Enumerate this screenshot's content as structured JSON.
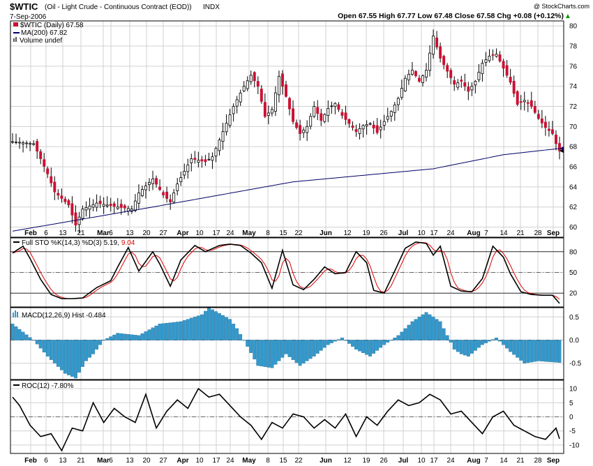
{
  "header": {
    "symbol": "$WTIC",
    "description": "(Oil - Light Crude - Continuous Contract (EOD))",
    "exchange": "INDX",
    "date": "7-Sep-2006",
    "copyright": "@ StockCharts.com",
    "ohlc_text": "Open 67.55  High 67.77  Low 67.48  Close 67.58  Chg +0.08 (+0.12%)",
    "ohlc_arrow": "▲"
  },
  "legend": {
    "price": "$WTIC (Daily) 67.58",
    "ma": "MA(200) 67.82",
    "volume": "Volume undef",
    "sto_prefix": "Full STO %K(14,3) %D(3) 5.19,",
    "sto_d_value": "9.04",
    "macd": "MACD(12,26,9) Hist -0.484",
    "roc": "ROC(12) -7.80%"
  },
  "colors": {
    "up_candle": "#ffffff",
    "down_candle": "#cc1133",
    "ma_line": "#000066",
    "k_line": "#000000",
    "d_line": "#dd0000",
    "hist": "#3399cc",
    "roc_line": "#000000"
  },
  "x_labels": [
    "Feb",
    "6",
    "13",
    "21",
    "Mar",
    "6",
    "13",
    "20",
    "27",
    "Apr",
    "10",
    "17",
    "24",
    "May",
    "8",
    "15",
    "22",
    "Jun",
    "12",
    "19",
    "26",
    "Jul",
    "10",
    "17",
    "24",
    "Aug",
    "7",
    "14",
    "21",
    "28",
    "Sep"
  ],
  "chart_data": [
    {
      "type": "candlestick",
      "name": "price",
      "ylim": [
        59,
        80.5
      ],
      "y_ticks": [
        "60",
        "62",
        "64",
        "66",
        "68",
        "70",
        "72",
        "74",
        "76",
        "78",
        "80"
      ],
      "close_anchors": [
        [
          0,
          68.5
        ],
        [
          6,
          68.3
        ],
        [
          10,
          65.3
        ],
        [
          12,
          63.5
        ],
        [
          16,
          62.2
        ],
        [
          18,
          60.2
        ],
        [
          20,
          61.8
        ],
        [
          24,
          62.4
        ],
        [
          30,
          62.0
        ],
        [
          34,
          61.8
        ],
        [
          36,
          63.4
        ],
        [
          40,
          64.8
        ],
        [
          43,
          63.2
        ],
        [
          45,
          62.5
        ],
        [
          47,
          64.3
        ],
        [
          51,
          66.8
        ],
        [
          55,
          66.5
        ],
        [
          57,
          67.0
        ],
        [
          60,
          69.5
        ],
        [
          63,
          72.0
        ],
        [
          66,
          74.0
        ],
        [
          68,
          75.1
        ],
        [
          70,
          74.0
        ],
        [
          72,
          71.0
        ],
        [
          74,
          71.7
        ],
        [
          76,
          75.0
        ],
        [
          78,
          73.0
        ],
        [
          80,
          70.5
        ],
        [
          82,
          69.3
        ],
        [
          84,
          70.0
        ],
        [
          86,
          72.0
        ],
        [
          88,
          70.6
        ],
        [
          90,
          71.8
        ],
        [
          92,
          72.3
        ],
        [
          94,
          71.1
        ],
        [
          96,
          70.3
        ],
        [
          98,
          69.5
        ],
        [
          100,
          70.1
        ],
        [
          102,
          70.3
        ],
        [
          104,
          69.4
        ],
        [
          106,
          70.5
        ],
        [
          108,
          71.5
        ],
        [
          110,
          72.8
        ],
        [
          112,
          74.8
        ],
        [
          114,
          75.6
        ],
        [
          116,
          74.5
        ],
        [
          118,
          75.6
        ],
        [
          120,
          79.0
        ],
        [
          122,
          76.8
        ],
        [
          124,
          75.5
        ],
        [
          126,
          74.2
        ],
        [
          128,
          74.5
        ],
        [
          130,
          73.5
        ],
        [
          132,
          74.5
        ],
        [
          134,
          76.3
        ],
        [
          136,
          77.0
        ],
        [
          138,
          77.2
        ],
        [
          140,
          75.8
        ],
        [
          142,
          74.4
        ],
        [
          144,
          72.2
        ],
        [
          146,
          72.6
        ],
        [
          148,
          72.0
        ],
        [
          150,
          70.8
        ],
        [
          152,
          69.9
        ],
        [
          154,
          69.3
        ],
        [
          155,
          68.3
        ],
        [
          156,
          67.58
        ]
      ],
      "last_close": 67.58
    },
    {
      "type": "line",
      "name": "MA(200)",
      "values_by_index": [
        [
          0,
          59.6
        ],
        [
          40,
          62.0
        ],
        [
          80,
          64.5
        ],
        [
          120,
          65.8
        ],
        [
          140,
          67.2
        ],
        [
          156,
          67.82
        ]
      ],
      "last_value": 67.82
    },
    {
      "type": "line",
      "name": "Full STO %K(14,3) %D(3)",
      "ylim": [
        0,
        100
      ],
      "y_ticks": [
        "20",
        "50",
        "80"
      ],
      "reference_lines": [
        80,
        50,
        20
      ],
      "k_anchors": [
        [
          0,
          78
        ],
        [
          3,
          88
        ],
        [
          5,
          70
        ],
        [
          8,
          40
        ],
        [
          11,
          18
        ],
        [
          14,
          12
        ],
        [
          17,
          12
        ],
        [
          20,
          13
        ],
        [
          24,
          28
        ],
        [
          28,
          38
        ],
        [
          30,
          58
        ],
        [
          33,
          86
        ],
        [
          36,
          52
        ],
        [
          40,
          80
        ],
        [
          42,
          62
        ],
        [
          45,
          30
        ],
        [
          48,
          68
        ],
        [
          52,
          89
        ],
        [
          55,
          80
        ],
        [
          59,
          89
        ],
        [
          62,
          91
        ],
        [
          65,
          89
        ],
        [
          68,
          78
        ],
        [
          71,
          64
        ],
        [
          74,
          27
        ],
        [
          77,
          82
        ],
        [
          80,
          32
        ],
        [
          83,
          25
        ],
        [
          86,
          40
        ],
        [
          89,
          58
        ],
        [
          92,
          48
        ],
        [
          95,
          50
        ],
        [
          98,
          80
        ],
        [
          101,
          64
        ],
        [
          103,
          24
        ],
        [
          106,
          20
        ],
        [
          109,
          52
        ],
        [
          112,
          85
        ],
        [
          115,
          94
        ],
        [
          118,
          92
        ],
        [
          120,
          75
        ],
        [
          122,
          88
        ],
        [
          125,
          30
        ],
        [
          128,
          23
        ],
        [
          131,
          22
        ],
        [
          134,
          41
        ],
        [
          137,
          88
        ],
        [
          140,
          72
        ],
        [
          142,
          48
        ],
        [
          145,
          22
        ],
        [
          148,
          18
        ],
        [
          151,
          17
        ],
        [
          154,
          17
        ],
        [
          156,
          5.19
        ]
      ],
      "k_last": 5.19,
      "d_last": 9.04
    },
    {
      "type": "bar",
      "name": "MACD(12,26,9) Hist",
      "ylim": [
        -0.85,
        0.7
      ],
      "y_ticks": [
        "0.5",
        "0.0",
        "-0.5"
      ],
      "anchors": [
        [
          0,
          0.35
        ],
        [
          6,
          0.0
        ],
        [
          10,
          -0.35
        ],
        [
          15,
          -0.72
        ],
        [
          18,
          -0.82
        ],
        [
          21,
          -0.45
        ],
        [
          23,
          -0.3
        ],
        [
          26,
          0.0
        ],
        [
          30,
          0.15
        ],
        [
          36,
          0.1
        ],
        [
          42,
          0.35
        ],
        [
          48,
          0.4
        ],
        [
          54,
          0.55
        ],
        [
          56,
          0.7
        ],
        [
          62,
          0.45
        ],
        [
          64,
          0.25
        ],
        [
          66,
          0.0
        ],
        [
          70,
          -0.55
        ],
        [
          74,
          -0.6
        ],
        [
          78,
          -0.3
        ],
        [
          82,
          -0.55
        ],
        [
          86,
          -0.35
        ],
        [
          90,
          -0.1
        ],
        [
          94,
          0.05
        ],
        [
          98,
          -0.2
        ],
        [
          102,
          -0.35
        ],
        [
          106,
          -0.1
        ],
        [
          110,
          0.1
        ],
        [
          114,
          0.4
        ],
        [
          118,
          0.6
        ],
        [
          122,
          0.4
        ],
        [
          126,
          -0.2
        ],
        [
          128,
          -0.3
        ],
        [
          130,
          -0.35
        ],
        [
          134,
          -0.1
        ],
        [
          138,
          0.05
        ],
        [
          142,
          -0.25
        ],
        [
          146,
          -0.5
        ],
        [
          150,
          -0.45
        ],
        [
          156,
          -0.484
        ]
      ],
      "last_value": -0.484
    },
    {
      "type": "line",
      "name": "ROC(12)",
      "ylim": [
        -13,
        13
      ],
      "y_ticks": [
        "10",
        "5",
        "0",
        "-5",
        "-10"
      ],
      "reference_lines": [
        0
      ],
      "anchors": [
        [
          0,
          7
        ],
        [
          2,
          4
        ],
        [
          5,
          -3
        ],
        [
          8,
          -7
        ],
        [
          11,
          -6
        ],
        [
          14,
          -12
        ],
        [
          17,
          -4
        ],
        [
          20,
          -5
        ],
        [
          23,
          5
        ],
        [
          26,
          -2
        ],
        [
          29,
          3
        ],
        [
          32,
          0
        ],
        [
          35,
          -2
        ],
        [
          38,
          8
        ],
        [
          41,
          -4
        ],
        [
          44,
          2
        ],
        [
          47,
          6
        ],
        [
          50,
          3
        ],
        [
          53,
          10
        ],
        [
          56,
          7
        ],
        [
          59,
          8
        ],
        [
          62,
          4
        ],
        [
          65,
          0
        ],
        [
          68,
          -3
        ],
        [
          71,
          -8
        ],
        [
          74,
          -2
        ],
        [
          77,
          -4
        ],
        [
          80,
          1
        ],
        [
          83,
          0
        ],
        [
          86,
          -4
        ],
        [
          89,
          -1
        ],
        [
          92,
          -4
        ],
        [
          95,
          1
        ],
        [
          98,
          -7
        ],
        [
          101,
          0
        ],
        [
          104,
          -3
        ],
        [
          107,
          2
        ],
        [
          110,
          6
        ],
        [
          113,
          4
        ],
        [
          116,
          5
        ],
        [
          119,
          8
        ],
        [
          122,
          6
        ],
        [
          125,
          1
        ],
        [
          128,
          2
        ],
        [
          131,
          -2
        ],
        [
          134,
          -6
        ],
        [
          137,
          0
        ],
        [
          140,
          2
        ],
        [
          143,
          -3
        ],
        [
          146,
          -5
        ],
        [
          149,
          -7
        ],
        [
          152,
          -8
        ],
        [
          155,
          -4
        ],
        [
          156,
          -7.8
        ]
      ],
      "last_value": -7.8
    }
  ]
}
